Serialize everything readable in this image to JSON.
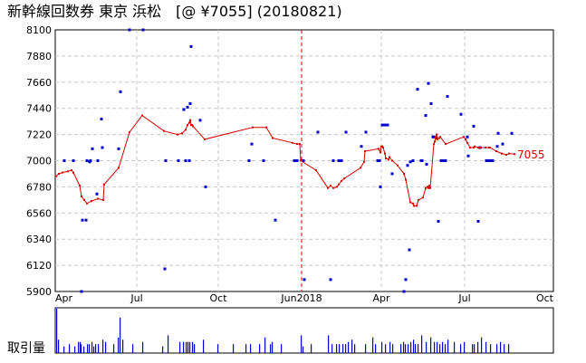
{
  "chart_data": {
    "type": "line",
    "title": "新幹線回数券 東京 浜松　[@ ¥7055] (20180821)",
    "volume_label": "取引量",
    "last_price_label": "7055",
    "x_labels": [
      "Apr",
      "Jul",
      "Oct",
      "Jun2018",
      "Apr",
      "Jul",
      "Oct"
    ],
    "y_ticks": [
      5900,
      6120,
      6340,
      6560,
      6780,
      7000,
      7220,
      7440,
      7660,
      7880,
      8100
    ],
    "ylim": [
      5900,
      8100
    ],
    "grid": true,
    "colors": {
      "line": "#d40000",
      "scatter": "#0000cc",
      "volume": "#0000cc",
      "divider": "#d40000",
      "grid": "#c8c8c8"
    },
    "series": [
      {
        "kind": "line",
        "points": [
          [
            1,
            6870
          ],
          [
            4,
            6890
          ],
          [
            8,
            6900
          ],
          [
            14,
            6910
          ],
          [
            18,
            6920
          ],
          [
            20,
            6900
          ],
          [
            27,
            6790
          ],
          [
            29,
            6700
          ],
          [
            32,
            6670
          ],
          [
            35,
            6640
          ],
          [
            40,
            6660
          ],
          [
            47,
            6680
          ],
          [
            53,
            6670
          ],
          [
            54,
            6800
          ],
          [
            70,
            6940
          ],
          [
            82,
            7240
          ],
          [
            96,
            7380
          ],
          [
            120,
            7250
          ],
          [
            135,
            7220
          ],
          [
            140,
            7230
          ],
          [
            144,
            7260
          ],
          [
            146,
            7300
          ],
          [
            148,
            7320
          ],
          [
            149,
            7340
          ],
          [
            150,
            7300
          ],
          [
            151,
            7300
          ],
          [
            152,
            7290
          ],
          [
            165,
            7180
          ],
          [
            218,
            7280
          ],
          [
            233,
            7280
          ],
          [
            240,
            7190
          ],
          [
            262,
            7150
          ],
          [
            267,
            7140
          ],
          [
            270,
            7140
          ],
          [
            271,
            7000
          ],
          [
            288,
            6920
          ],
          [
            301,
            6770
          ],
          [
            304,
            6790
          ],
          [
            307,
            6770
          ],
          [
            311,
            6780
          ],
          [
            313,
            6800
          ],
          [
            316,
            6830
          ],
          [
            319,
            6850
          ],
          [
            337,
            6940
          ],
          [
            341,
            6990
          ],
          [
            342,
            7080
          ],
          [
            357,
            7100
          ],
          [
            359,
            7070
          ],
          [
            360,
            7120
          ],
          [
            361,
            7120
          ],
          [
            362,
            7110
          ],
          [
            364,
            7060
          ],
          [
            365,
            7020
          ],
          [
            368,
            7010
          ],
          [
            369,
            7030
          ],
          [
            372,
            7000
          ],
          [
            378,
            6960
          ],
          [
            385,
            6890
          ],
          [
            387,
            6840
          ],
          [
            392,
            6650
          ],
          [
            395,
            6640
          ],
          [
            396,
            6620
          ],
          [
            399,
            6620
          ],
          [
            401,
            6670
          ],
          [
            406,
            6690
          ],
          [
            409,
            6770
          ],
          [
            411,
            6780
          ],
          [
            412,
            6770
          ],
          [
            413,
            6790
          ],
          [
            414,
            6770
          ],
          [
            418,
            7140
          ],
          [
            419,
            7160
          ],
          [
            420,
            7200
          ],
          [
            421,
            7220
          ],
          [
            422,
            7180
          ],
          [
            424,
            7190
          ],
          [
            425,
            7200
          ],
          [
            431,
            7140
          ],
          [
            451,
            7200
          ],
          [
            453,
            7180
          ],
          [
            455,
            7150
          ],
          [
            458,
            7110
          ],
          [
            462,
            7110
          ],
          [
            463,
            7120
          ],
          [
            467,
            7110
          ],
          [
            470,
            7110
          ],
          [
            475,
            7110
          ],
          [
            479,
            7110
          ],
          [
            480,
            7110
          ],
          [
            487,
            7080
          ],
          [
            493,
            7060
          ],
          [
            498,
            7050
          ],
          [
            501,
            7060
          ],
          [
            507,
            7055
          ]
        ]
      },
      {
        "kind": "scatter",
        "points": [
          [
            10,
            7000
          ],
          [
            20,
            7000
          ],
          [
            29,
            5900
          ],
          [
            30,
            6500
          ],
          [
            34,
            6500
          ],
          [
            35,
            7000
          ],
          [
            38,
            6990
          ],
          [
            39,
            7000
          ],
          [
            41,
            7100
          ],
          [
            46,
            6720
          ],
          [
            47,
            7000
          ],
          [
            51,
            7350
          ],
          [
            52,
            7110
          ],
          [
            70,
            7100
          ],
          [
            72,
            7580
          ],
          [
            82,
            8100
          ],
          [
            97,
            8100
          ],
          [
            121,
            6090
          ],
          [
            122,
            7000
          ],
          [
            136,
            7000
          ],
          [
            142,
            7430
          ],
          [
            144,
            7000
          ],
          [
            146,
            7450
          ],
          [
            148,
            7000
          ],
          [
            149,
            7480
          ],
          [
            150,
            7960
          ],
          [
            160,
            7340
          ],
          [
            166,
            6780
          ],
          [
            214,
            7000
          ],
          [
            217,
            7140
          ],
          [
            230,
            7000
          ],
          [
            243,
            6500
          ],
          [
            264,
            7000
          ],
          [
            267,
            7000
          ],
          [
            274,
            7000
          ],
          [
            275,
            6000
          ],
          [
            290,
            7240
          ],
          [
            304,
            6000
          ],
          [
            307,
            7000
          ],
          [
            313,
            7000
          ],
          [
            316,
            7000
          ],
          [
            321,
            7240
          ],
          [
            338,
            7120
          ],
          [
            343,
            7240
          ],
          [
            356,
            7000
          ],
          [
            358,
            7000
          ],
          [
            359,
            6780
          ],
          [
            361,
            7300
          ],
          [
            364,
            7300
          ],
          [
            367,
            7300
          ],
          [
            372,
            6890
          ],
          [
            385,
            5900
          ],
          [
            387,
            6000
          ],
          [
            389,
            6960
          ],
          [
            391,
            6250
          ],
          [
            392,
            6990
          ],
          [
            395,
            7000
          ],
          [
            400,
            7600
          ],
          [
            404,
            7000
          ],
          [
            405,
            7000
          ],
          [
            409,
            7380
          ],
          [
            410,
            6970
          ],
          [
            412,
            7650
          ],
          [
            415,
            7480
          ],
          [
            417,
            7200
          ],
          [
            418,
            7200
          ],
          [
            421,
            7190
          ],
          [
            423,
            6490
          ],
          [
            426,
            7000
          ],
          [
            428,
            7000
          ],
          [
            431,
            7000
          ],
          [
            433,
            7540
          ],
          [
            448,
            7390
          ],
          [
            455,
            7200
          ],
          [
            456,
            7040
          ],
          [
            462,
            7290
          ],
          [
            467,
            6490
          ],
          [
            469,
            7110
          ],
          [
            476,
            7000
          ],
          [
            479,
            7000
          ],
          [
            481,
            7000
          ],
          [
            483,
            7000
          ],
          [
            488,
            7120
          ],
          [
            489,
            7230
          ],
          [
            494,
            7140
          ],
          [
            504,
            7230
          ]
        ]
      }
    ],
    "volume": [
      [
        1,
        1
      ],
      [
        3,
        0.3
      ],
      [
        9,
        0.15
      ],
      [
        15,
        0.2
      ],
      [
        21,
        0.15
      ],
      [
        25,
        0.25
      ],
      [
        27,
        0.25
      ],
      [
        28,
        0.2
      ],
      [
        31,
        0.15
      ],
      [
        35,
        0.2
      ],
      [
        37,
        0.2
      ],
      [
        40,
        0.25
      ],
      [
        42,
        0.15
      ],
      [
        44,
        0.2
      ],
      [
        47,
        0.2
      ],
      [
        52,
        0.3
      ],
      [
        55,
        0.25
      ],
      [
        64,
        0.2
      ],
      [
        69,
        0.35
      ],
      [
        71,
        0.8
      ],
      [
        74,
        0.3
      ],
      [
        85,
        0.2
      ],
      [
        96,
        0.25
      ],
      [
        118,
        0.15
      ],
      [
        124,
        0.4
      ],
      [
        137,
        0.25
      ],
      [
        141,
        0.25
      ],
      [
        144,
        0.25
      ],
      [
        146,
        0.25
      ],
      [
        148,
        0.25
      ],
      [
        151,
        0.25
      ],
      [
        153,
        0.2
      ],
      [
        163,
        0.3
      ],
      [
        179,
        0.2
      ],
      [
        196,
        0.2
      ],
      [
        210,
        0.2
      ],
      [
        215,
        0.2
      ],
      [
        225,
        0.2
      ],
      [
        231,
        0.35
      ],
      [
        237,
        0.2
      ],
      [
        239,
        0.25
      ],
      [
        249,
        0.2
      ],
      [
        271,
        0.4
      ],
      [
        273,
        0.15
      ],
      [
        282,
        0.2
      ],
      [
        301,
        0.4
      ],
      [
        305,
        0.2
      ],
      [
        310,
        0.2
      ],
      [
        313,
        0.2
      ],
      [
        317,
        0.2
      ],
      [
        320,
        0.2
      ],
      [
        323,
        0.25
      ],
      [
        327,
        0.3
      ],
      [
        330,
        0.2
      ],
      [
        342,
        0.2
      ],
      [
        350,
        0.35
      ],
      [
        353,
        0.2
      ],
      [
        360,
        0.25
      ],
      [
        364,
        0.2
      ],
      [
        369,
        0.25
      ],
      [
        372,
        0.2
      ],
      [
        381,
        0.2
      ],
      [
        384,
        0.25
      ],
      [
        386,
        0.2
      ],
      [
        389,
        0.2
      ],
      [
        392,
        0.25
      ],
      [
        395,
        0.3
      ],
      [
        397,
        0.2
      ],
      [
        400,
        0.2
      ],
      [
        404,
        0.4
      ],
      [
        409,
        0.25
      ],
      [
        414,
        0.35
      ],
      [
        418,
        0.25
      ],
      [
        421,
        0.25
      ],
      [
        424,
        0.2
      ],
      [
        427,
        0.25
      ],
      [
        430,
        0.2
      ],
      [
        433,
        0.3
      ],
      [
        440,
        0.25
      ],
      [
        447,
        0.2
      ],
      [
        451,
        0.25
      ],
      [
        460,
        0.2
      ],
      [
        462,
        0.2
      ],
      [
        466,
        0.25
      ],
      [
        470,
        0.35
      ],
      [
        475,
        0.25
      ],
      [
        480,
        0.2
      ],
      [
        487,
        0.2
      ],
      [
        491,
        0.25
      ],
      [
        495,
        0.2
      ],
      [
        500,
        0.2
      ]
    ]
  }
}
